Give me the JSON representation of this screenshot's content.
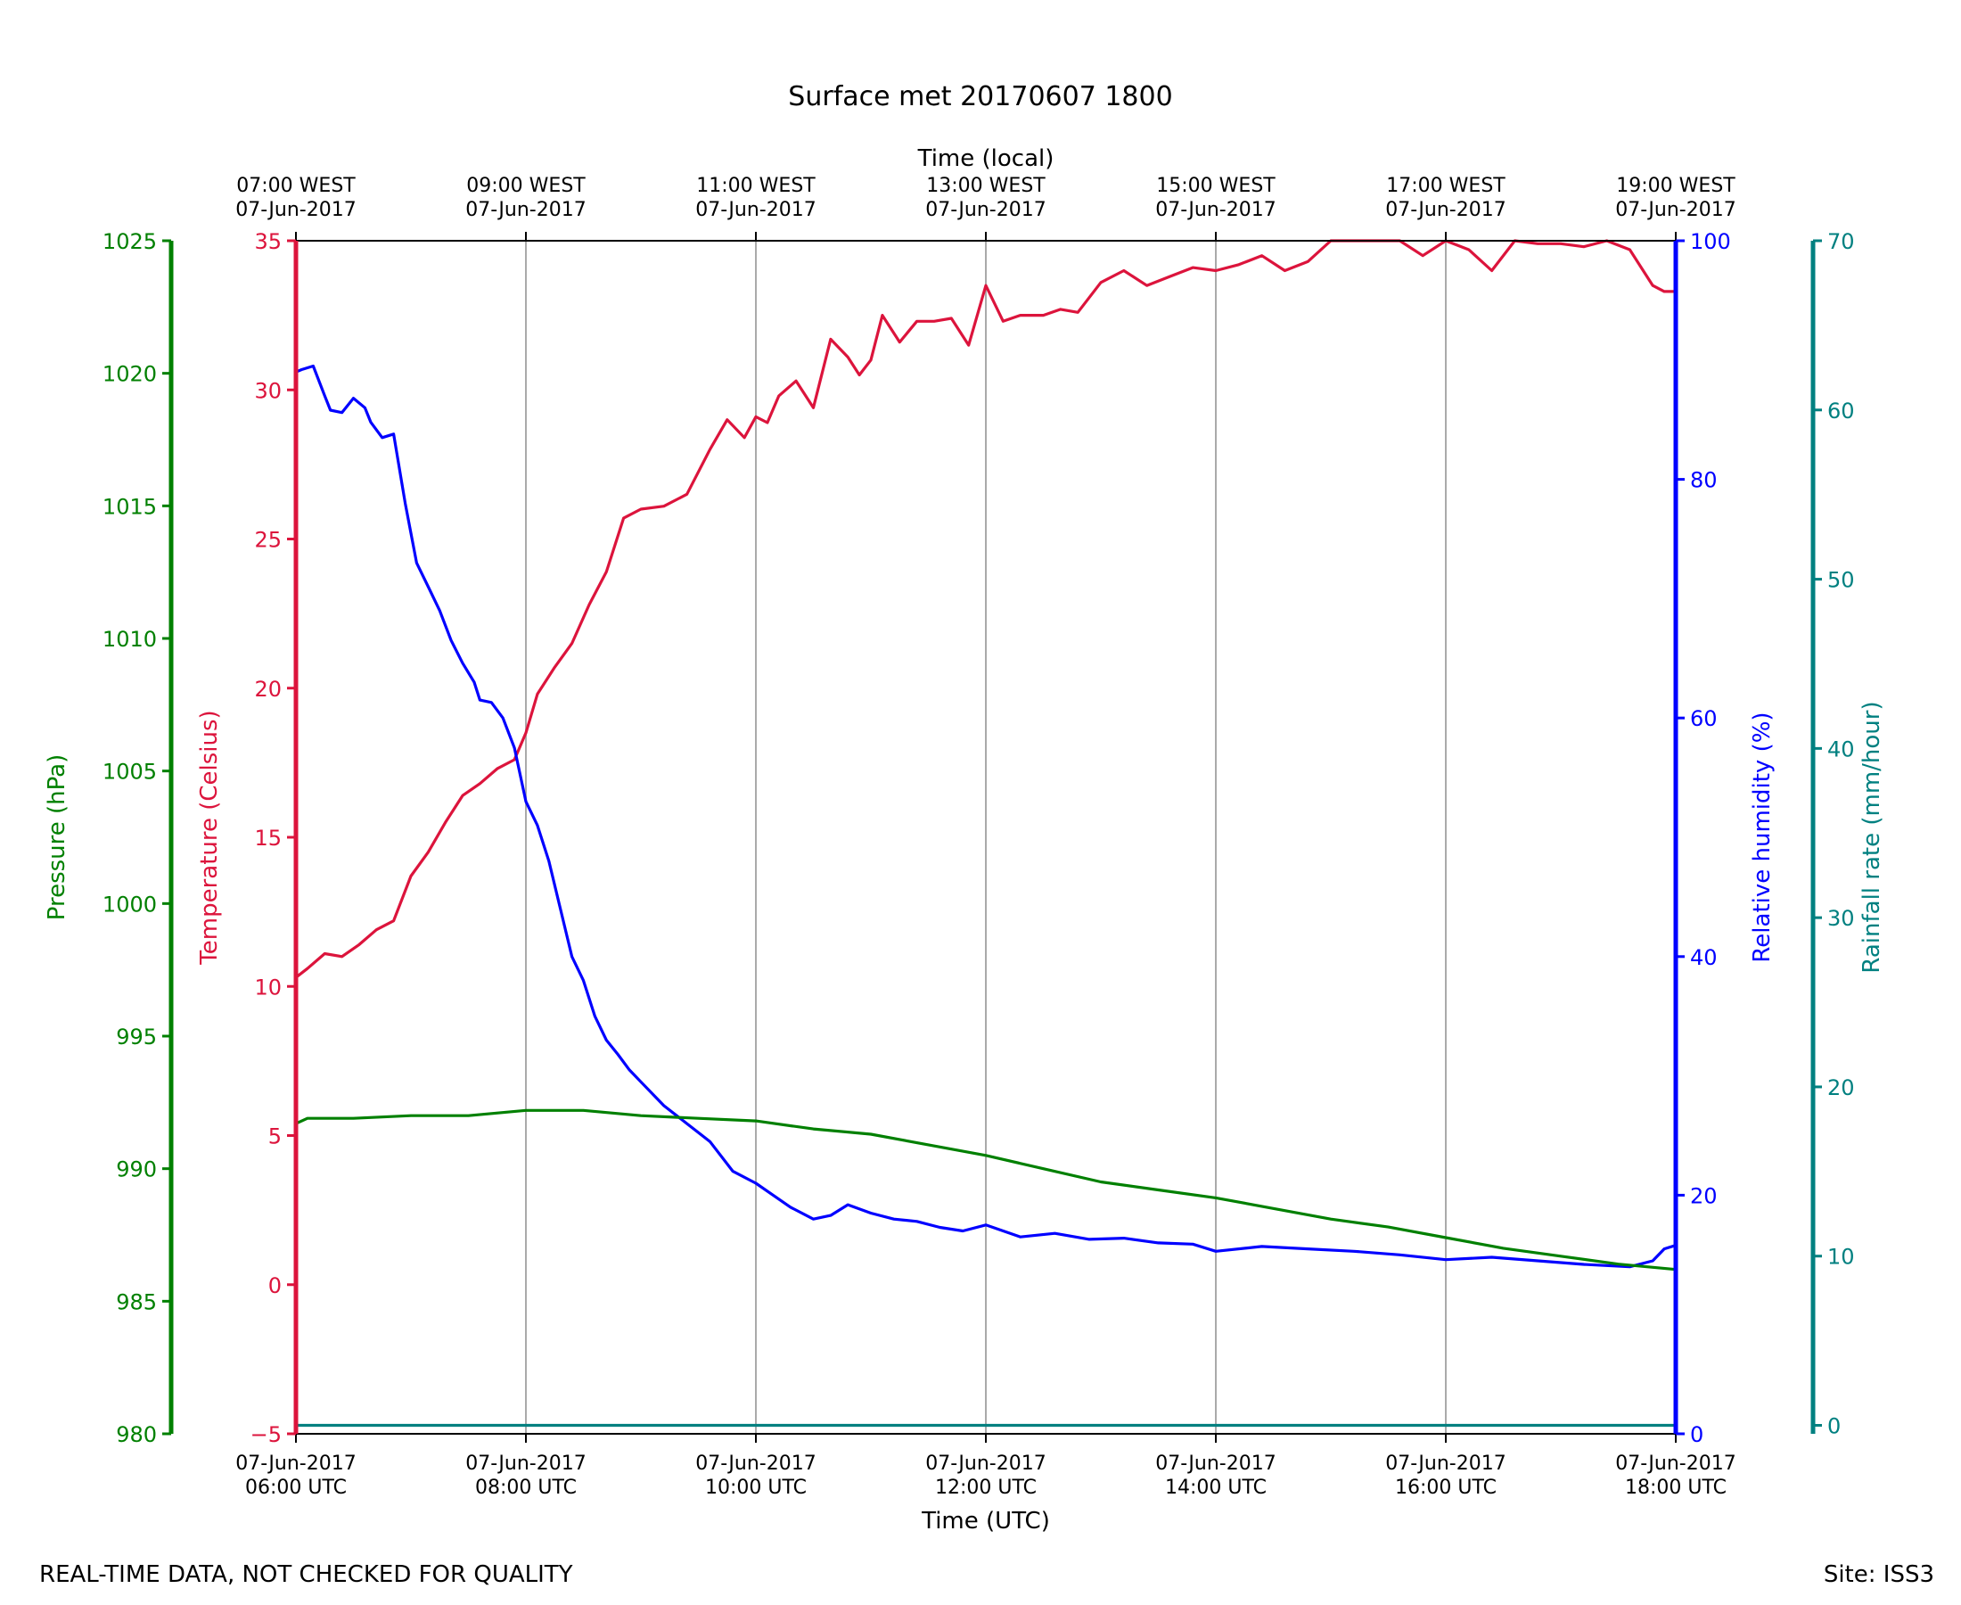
{
  "chart_data": {
    "type": "line",
    "title": "Surface met 20170607 1800",
    "top_axis_label": "Time (local)",
    "top_tick_labels": [
      [
        "07:00 WEST",
        "07-Jun-2017"
      ],
      [
        "09:00 WEST",
        "07-Jun-2017"
      ],
      [
        "11:00 WEST",
        "07-Jun-2017"
      ],
      [
        "13:00 WEST",
        "07-Jun-2017"
      ],
      [
        "15:00 WEST",
        "07-Jun-2017"
      ],
      [
        "17:00 WEST",
        "07-Jun-2017"
      ],
      [
        "19:00 WEST",
        "07-Jun-2017"
      ]
    ],
    "xlabel": "Time (UTC)",
    "x_tick_labels": [
      [
        "07-Jun-2017",
        "06:00 UTC"
      ],
      [
        "07-Jun-2017",
        "08:00 UTC"
      ],
      [
        "07-Jun-2017",
        "10:00 UTC"
      ],
      [
        "07-Jun-2017",
        "12:00 UTC"
      ],
      [
        "07-Jun-2017",
        "14:00 UTC"
      ],
      [
        "07-Jun-2017",
        "16:00 UTC"
      ],
      [
        "07-Jun-2017",
        "18:00 UTC"
      ]
    ],
    "xlim_hours": [
      6,
      18
    ],
    "grid": "vertical",
    "axes": {
      "pressure": {
        "label": "Pressure (hPa)",
        "color": "#008000",
        "ylim": [
          980,
          1025
        ],
        "ticks": [
          980,
          985,
          990,
          995,
          1000,
          1005,
          1010,
          1015,
          1020,
          1025
        ]
      },
      "temperature": {
        "label": "Temperature (Celsius)",
        "color": "#dc143c",
        "ylim": [
          -5,
          35
        ],
        "ticks": [
          "−5",
          "0",
          "5",
          "10",
          "15",
          "20",
          "25",
          "30",
          "35"
        ]
      },
      "humidity": {
        "label": "Relative humidity (%)",
        "color": "#0000ff",
        "ylim": [
          0,
          100
        ],
        "ticks": [
          0,
          20,
          40,
          60,
          80,
          100
        ]
      },
      "rainfall": {
        "label": "Rainfall rate (mm/hour)",
        "color": "#008080",
        "ylim": [
          -0.5,
          70
        ],
        "ticks": [
          0,
          10,
          20,
          30,
          40,
          50,
          60,
          70
        ]
      }
    },
    "series": [
      {
        "name": "Temperature",
        "axis": "temperature",
        "color": "#dc143c",
        "x": [
          6.0,
          6.1,
          6.25,
          6.4,
          6.55,
          6.7,
          6.85,
          7.0,
          7.15,
          7.3,
          7.45,
          7.6,
          7.75,
          7.9,
          8.0,
          8.1,
          8.25,
          8.4,
          8.55,
          8.7,
          8.85,
          9.0,
          9.2,
          9.4,
          9.6,
          9.75,
          9.9,
          10.0,
          10.1,
          10.2,
          10.35,
          10.5,
          10.65,
          10.8,
          10.9,
          11.0,
          11.1,
          11.25,
          11.4,
          11.55,
          11.7,
          11.85,
          12.0,
          12.15,
          12.3,
          12.4,
          12.5,
          12.65,
          12.8,
          13.0,
          13.2,
          13.4,
          13.6,
          13.8,
          14.0,
          14.2,
          14.4,
          14.6,
          14.8,
          15.0,
          15.2,
          15.4,
          15.6,
          15.8,
          16.0,
          16.2,
          16.4,
          16.6,
          16.8,
          17.0,
          17.2,
          17.4,
          17.6,
          17.8,
          17.9,
          18.0
        ],
        "values": [
          10.3,
          10.6,
          11.1,
          11.0,
          11.4,
          11.9,
          12.2,
          13.7,
          14.5,
          15.5,
          16.4,
          16.8,
          17.3,
          17.6,
          18.5,
          19.8,
          20.7,
          21.5,
          22.8,
          23.9,
          25.7,
          26.0,
          26.1,
          26.5,
          28.0,
          29.0,
          28.4,
          29.1,
          28.9,
          29.8,
          30.3,
          29.4,
          31.7,
          31.1,
          30.5,
          31.0,
          32.5,
          31.6,
          32.3,
          32.3,
          32.4,
          31.5,
          33.5,
          32.3,
          32.5,
          32.5,
          32.5,
          32.7,
          32.6,
          33.6,
          34.0,
          33.5,
          33.8,
          34.1,
          34.0,
          34.2,
          34.5,
          34.0,
          34.3,
          35.0,
          35.0,
          35.0,
          35.0,
          34.5,
          35.0,
          34.7,
          34.0,
          35.0,
          34.9,
          34.9,
          34.8,
          35.0,
          34.7,
          33.5,
          33.3,
          33.3
        ]
      },
      {
        "name": "Relative humidity",
        "axis": "humidity",
        "color": "#0000ff",
        "x": [
          6.0,
          6.05,
          6.15,
          6.25,
          6.3,
          6.4,
          6.5,
          6.6,
          6.65,
          6.75,
          6.85,
          6.95,
          7.05,
          7.15,
          7.25,
          7.35,
          7.45,
          7.55,
          7.6,
          7.7,
          7.8,
          7.9,
          8.0,
          8.1,
          8.2,
          8.3,
          8.4,
          8.5,
          8.6,
          8.7,
          8.8,
          8.9,
          9.0,
          9.2,
          9.4,
          9.6,
          9.8,
          10.0,
          10.15,
          10.3,
          10.5,
          10.65,
          10.8,
          11.0,
          11.2,
          11.4,
          11.6,
          11.8,
          12.0,
          12.3,
          12.6,
          12.9,
          13.2,
          13.5,
          13.8,
          14.0,
          14.4,
          14.8,
          15.2,
          15.6,
          16.0,
          16.4,
          16.8,
          17.2,
          17.6,
          17.8,
          17.9,
          18.0
        ],
        "values": [
          89.0,
          89.2,
          89.5,
          87.0,
          85.8,
          85.6,
          86.8,
          86.0,
          84.8,
          83.5,
          83.8,
          78.0,
          73.0,
          71.0,
          69.0,
          66.5,
          64.6,
          63.0,
          61.5,
          61.3,
          60.0,
          57.5,
          53.0,
          51.0,
          48.0,
          44.0,
          40.0,
          38.0,
          35.0,
          33.0,
          31.8,
          30.5,
          29.5,
          27.5,
          26.0,
          24.5,
          22.0,
          21.0,
          20.0,
          19.0,
          18.0,
          18.3,
          19.2,
          18.5,
          18.0,
          17.8,
          17.3,
          17.0,
          17.5,
          16.5,
          16.8,
          16.3,
          16.4,
          16.0,
          15.9,
          15.3,
          15.7,
          15.5,
          15.3,
          15.0,
          14.6,
          14.8,
          14.5,
          14.2,
          14.0,
          14.5,
          15.5,
          15.8
        ]
      },
      {
        "name": "Pressure",
        "axis": "pressure",
        "color": "#008000",
        "x": [
          6.0,
          6.1,
          6.5,
          7.0,
          7.5,
          8.0,
          8.5,
          9.0,
          9.5,
          10.0,
          10.5,
          11.0,
          11.5,
          12.0,
          12.5,
          13.0,
          13.5,
          14.0,
          14.5,
          15.0,
          15.5,
          16.0,
          16.5,
          17.0,
          17.5,
          18.0
        ],
        "values": [
          991.7,
          991.9,
          991.9,
          992.0,
          992.0,
          992.2,
          992.2,
          992.0,
          991.9,
          991.8,
          991.5,
          991.3,
          990.9,
          990.5,
          990.0,
          989.5,
          989.2,
          988.9,
          988.5,
          988.1,
          987.8,
          987.4,
          987.0,
          986.7,
          986.4,
          986.2
        ]
      },
      {
        "name": "Rainfall rate",
        "axis": "rainfall",
        "color": "#008080",
        "x": [
          6.0,
          18.0
        ],
        "values": [
          0.0,
          0.0
        ]
      }
    ]
  },
  "footer": {
    "left": "REAL-TIME DATA, NOT CHECKED FOR QUALITY",
    "right": "Site: ISS3"
  }
}
